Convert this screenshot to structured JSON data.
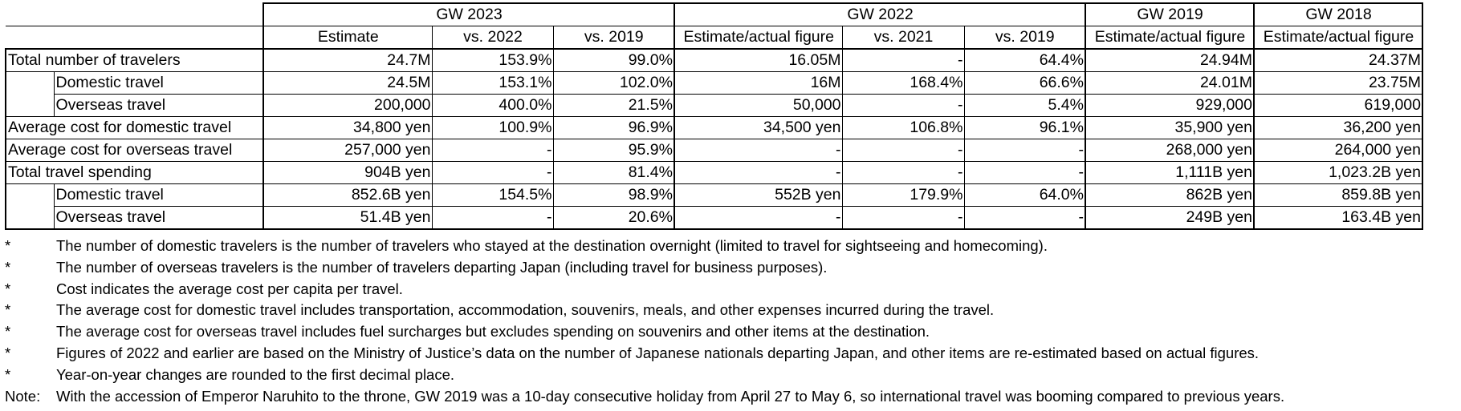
{
  "table": {
    "group_headers": {
      "gw2023": "GW 2023",
      "gw2022": "GW 2022",
      "gw2019": "GW 2019",
      "gw2018": "GW 2018"
    },
    "sub_headers": {
      "gw2023_estimate": "Estimate",
      "gw2023_vs2022": "vs. 2022",
      "gw2023_vs2019": "vs. 2019",
      "gw2022_estimate": "Estimate/actual figure",
      "gw2022_vs2021": "vs. 2021",
      "gw2022_vs2019": "vs. 2019",
      "gw2019_estimate": "Estimate/actual figure",
      "gw2018_estimate": "Estimate/actual figure"
    },
    "rows": [
      {
        "label": "Total number of travelers",
        "gw2023_estimate": "24.7M",
        "gw2023_vs2022": "153.9%",
        "gw2023_vs2019": "99.0%",
        "gw2022_estimate": "16.05M",
        "gw2022_vs2021": "-",
        "gw2022_vs2019": "64.4%",
        "gw2019": "24.94M",
        "gw2018": "24.37M"
      },
      {
        "label": "Domestic travel",
        "gw2023_estimate": "24.5M",
        "gw2023_vs2022": "153.1%",
        "gw2023_vs2019": "102.0%",
        "gw2022_estimate": "16M",
        "gw2022_vs2021": "168.4%",
        "gw2022_vs2019": "66.6%",
        "gw2019": "24.01M",
        "gw2018": "23.75M"
      },
      {
        "label": "Overseas travel",
        "gw2023_estimate": "200,000",
        "gw2023_vs2022": "400.0%",
        "gw2023_vs2019": "21.5%",
        "gw2022_estimate": "50,000",
        "gw2022_vs2021": "-",
        "gw2022_vs2019": "5.4%",
        "gw2019": "929,000",
        "gw2018": "619,000"
      },
      {
        "label": "Average cost for domestic travel",
        "gw2023_estimate": "34,800 yen",
        "gw2023_vs2022": "100.9%",
        "gw2023_vs2019": "96.9%",
        "gw2022_estimate": "34,500 yen",
        "gw2022_vs2021": "106.8%",
        "gw2022_vs2019": "96.1%",
        "gw2019": "35,900 yen",
        "gw2018": "36,200 yen"
      },
      {
        "label": "Average cost for overseas travel",
        "gw2023_estimate": "257,000 yen",
        "gw2023_vs2022": "-",
        "gw2023_vs2019": "95.9%",
        "gw2022_estimate": "-",
        "gw2022_vs2021": "-",
        "gw2022_vs2019": "-",
        "gw2019": "268,000 yen",
        "gw2018": "264,000 yen"
      },
      {
        "label": "Total travel spending",
        "gw2023_estimate": "904B yen",
        "gw2023_vs2022": "-",
        "gw2023_vs2019": "81.4%",
        "gw2022_estimate": "-",
        "gw2022_vs2021": "-",
        "gw2022_vs2019": "-",
        "gw2019": "1,111B yen",
        "gw2018": "1,023.2B yen"
      },
      {
        "label": "Domestic travel",
        "gw2023_estimate": "852.6B yen",
        "gw2023_vs2022": "154.5%",
        "gw2023_vs2019": "98.9%",
        "gw2022_estimate": "552B yen",
        "gw2022_vs2021": "179.9%",
        "gw2022_vs2019": "64.0%",
        "gw2019": "862B yen",
        "gw2018": "859.8B yen"
      },
      {
        "label": "Overseas travel",
        "gw2023_estimate": "51.4B yen",
        "gw2023_vs2022": "-",
        "gw2023_vs2019": "20.6%",
        "gw2022_estimate": "-",
        "gw2022_vs2021": "-",
        "gw2022_vs2019": "-",
        "gw2019": "249B yen",
        "gw2018": "163.4B yen"
      }
    ]
  },
  "notes": [
    {
      "mark": "*",
      "text": "The number of domestic travelers is the number of travelers who stayed at the destination overnight (limited to travel for sightseeing and homecoming)."
    },
    {
      "mark": "*",
      "text": "The number of overseas travelers is the number of travelers departing Japan (including travel for business purposes)."
    },
    {
      "mark": "*",
      "text": "Cost indicates the average cost per capita per travel."
    },
    {
      "mark": "*",
      "text": "The average cost for domestic travel includes transportation, accommodation, souvenirs, meals, and other expenses incurred during the travel."
    },
    {
      "mark": "*",
      "text": "The average cost for overseas travel includes fuel surcharges but excludes spending on souvenirs and other items at the destination."
    },
    {
      "mark": "*",
      "text": "Figures of 2022 and earlier are based on the Ministry of Justice’s data on the number of Japanese nationals departing Japan, and other items are re-estimated based on actual figures."
    },
    {
      "mark": "*",
      "text": "Year-on-year changes are rounded to the first decimal place."
    },
    {
      "mark": "Note:",
      "text": "With the accession of Emperor Naruhito to the throne, GW 2019 was a 10-day consecutive holiday from April 27 to May 6, so international travel was booming compared to previous years."
    }
  ]
}
